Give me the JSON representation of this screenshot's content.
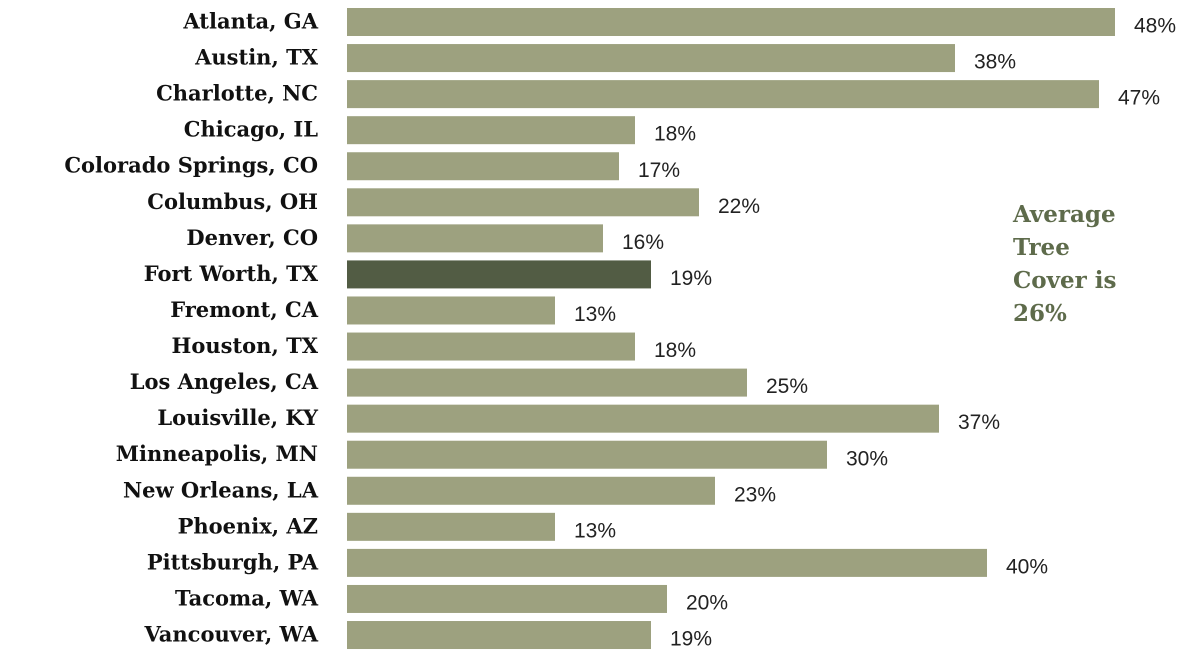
{
  "chart_data": {
    "type": "bar",
    "orientation": "horizontal",
    "categories": [
      "Atlanta, GA",
      "Austin, TX",
      "Charlotte, NC",
      "Chicago, IL",
      "Colorado Springs, CO",
      "Columbus, OH",
      "Denver, CO",
      "Fort Worth, TX",
      "Fremont, CA",
      "Houston, TX",
      "Los Angeles, CA",
      "Louisville, KY",
      "Minneapolis, MN",
      "New Orleans, LA",
      "Phoenix, AZ",
      "Pittsburgh, PA",
      "Tacoma, WA",
      "Vancouver, WA"
    ],
    "values": [
      48,
      38,
      47,
      18,
      17,
      22,
      16,
      19,
      13,
      18,
      25,
      37,
      30,
      23,
      13,
      40,
      20,
      19
    ],
    "value_labels": [
      "48%",
      "38%",
      "47%",
      "18%",
      "17%",
      "22%",
      "16%",
      "19%",
      "13%",
      "18%",
      "25%",
      "37%",
      "30%",
      "23%",
      "13%",
      "40%",
      "20%",
      "19%"
    ],
    "colors": [
      "#9da17f",
      "#9da17f",
      "#9da17f",
      "#9da17f",
      "#9da17f",
      "#9da17f",
      "#9da17f",
      "#525c44",
      "#9da17f",
      "#9da17f",
      "#9da17f",
      "#9da17f",
      "#9da17f",
      "#9da17f",
      "#9da17f",
      "#9da17f",
      "#9da17f",
      "#9da17f"
    ],
    "annotation": "Average Tree Cover is 26%"
  }
}
